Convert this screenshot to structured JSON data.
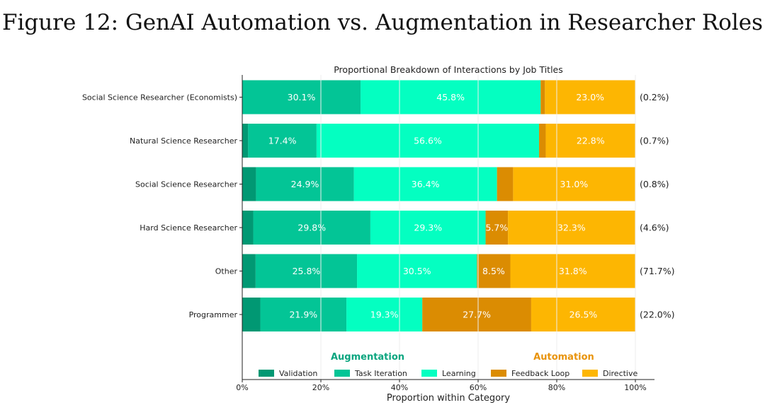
{
  "figure_title": "Figure 12: GenAI Automation vs. Augmentation in Researcher Roles",
  "chart_data": {
    "type": "bar",
    "orientation": "horizontal",
    "stacked": true,
    "title": "Proportional Breakdown of Interactions by Job Titles",
    "xlabel": "Proportion within Category",
    "ylabel": "",
    "xlim": [
      0,
      100
    ],
    "x_ticks": [
      "0%",
      "20%",
      "40%",
      "60%",
      "80%",
      "100%"
    ],
    "categories": [
      "Social Science Researcher (Economists)",
      "Natural Science Researcher",
      "Social Science Researcher",
      "Hard Science Researcher",
      "Other",
      "Programmer"
    ],
    "category_share_labels": [
      "(0.2%)",
      "(0.7%)",
      "(0.8%)",
      "(4.6%)",
      "(71.7%)",
      "(22.0%)"
    ],
    "series": [
      {
        "name": "Validation",
        "color": "#019873",
        "values": [
          0.0,
          1.5,
          3.5,
          2.8,
          3.4,
          4.6
        ]
      },
      {
        "name": "Task Iteration",
        "color": "#03c596",
        "values": [
          30.1,
          17.4,
          24.9,
          29.8,
          25.8,
          21.9
        ]
      },
      {
        "name": "Learning",
        "color": "#04ffc1",
        "values": [
          45.8,
          56.6,
          36.4,
          29.3,
          30.5,
          19.3
        ]
      },
      {
        "name": "Feedback Loop",
        "color": "#db8c02",
        "values": [
          1.1,
          1.7,
          4.1,
          5.7,
          8.5,
          27.7
        ]
      },
      {
        "name": "Directive",
        "color": "#fdb602",
        "values": [
          23.0,
          22.8,
          31.0,
          32.3,
          31.8,
          26.5
        ]
      }
    ],
    "bar_labels": [
      [
        "",
        "30.1%",
        "45.8%",
        "",
        "23.0%"
      ],
      [
        "",
        "17.4%",
        "56.6%",
        "",
        "22.8%"
      ],
      [
        "",
        "24.9%",
        "36.4%",
        "",
        "31.0%"
      ],
      [
        "",
        "29.8%",
        "29.3%",
        "5.7%",
        "32.3%"
      ],
      [
        "",
        "25.8%",
        "30.5%",
        "8.5%",
        "31.8%"
      ],
      [
        "",
        "21.9%",
        "19.3%",
        "27.7%",
        "26.5%"
      ]
    ],
    "legend": {
      "placement": "bottom-inside",
      "groups": [
        {
          "title": "Augmentation",
          "color": "#0aa57f"
        },
        {
          "title": "Automation",
          "color": "#e8930c"
        }
      ]
    }
  }
}
